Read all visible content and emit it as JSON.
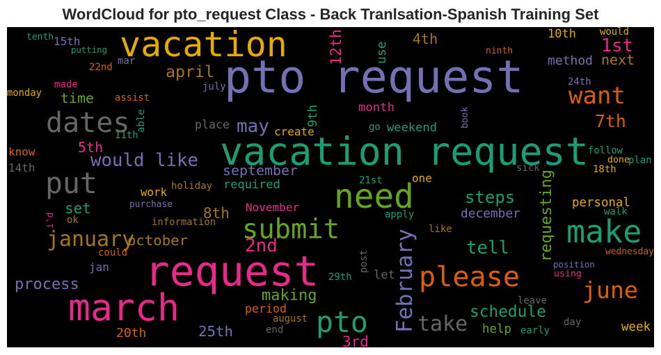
{
  "chart_data": {
    "type": "wordcloud",
    "title": "WordCloud for pto_request Class - Back Tranlsation-Spanish Training Set",
    "background": "#000000",
    "colormap": [
      "#1b9e77",
      "#d95f02",
      "#7570b3",
      "#e7298a",
      "#66a61e",
      "#e6ab02",
      "#a6761d",
      "#666666"
    ],
    "words": [
      {
        "text": "pto request",
        "color": "#7570b3",
        "vertical": false
      },
      {
        "text": "vacation request",
        "color": "#1b9e77",
        "vertical": false
      },
      {
        "text": "request",
        "color": "#e7298a",
        "vertical": false
      },
      {
        "text": "vacation",
        "color": "#e6ab02",
        "vertical": false
      },
      {
        "text": "march",
        "color": "#e7298a",
        "vertical": false
      },
      {
        "text": "need",
        "color": "#66a61e",
        "vertical": false
      },
      {
        "text": "put",
        "color": "#666666",
        "vertical": false
      },
      {
        "text": "submit",
        "color": "#66a61e",
        "vertical": false
      },
      {
        "text": "make",
        "color": "#1b9e77",
        "vertical": false
      },
      {
        "text": "please",
        "color": "#d95f02",
        "vertical": false
      },
      {
        "text": "pto",
        "color": "#1b9e77",
        "vertical": false
      },
      {
        "text": "june",
        "color": "#d95f02",
        "vertical": false
      },
      {
        "text": "dates",
        "color": "#666666",
        "vertical": false
      },
      {
        "text": "February",
        "color": "#7570b3",
        "vertical": true
      },
      {
        "text": "want",
        "color": "#d95f02",
        "vertical": false
      },
      {
        "text": "take",
        "color": "#666666",
        "vertical": false
      },
      {
        "text": "would like",
        "color": "#7570b3",
        "vertical": false
      },
      {
        "text": "january",
        "color": "#a6761d",
        "vertical": false
      },
      {
        "text": "tell",
        "color": "#1b9e77",
        "vertical": false
      },
      {
        "text": "schedule",
        "color": "#1b9e77",
        "vertical": false
      },
      {
        "text": "requesting",
        "color": "#66a61e",
        "vertical": true
      },
      {
        "text": "april",
        "color": "#a6761d",
        "vertical": false
      },
      {
        "text": "1st",
        "color": "#e7298a",
        "vertical": false
      },
      {
        "text": "12th",
        "color": "#e7298a",
        "vertical": true
      },
      {
        "text": "may",
        "color": "#7570b3",
        "vertical": false
      },
      {
        "text": "7th",
        "color": "#d95f02",
        "vertical": false
      },
      {
        "text": "process",
        "color": "#7570b3",
        "vertical": false
      },
      {
        "text": "making",
        "color": "#66a61e",
        "vertical": false
      },
      {
        "text": "october",
        "color": "#a6761d",
        "vertical": false
      },
      {
        "text": "steps",
        "color": "#1b9e77",
        "vertical": false
      },
      {
        "text": "2nd",
        "color": "#e7298a",
        "vertical": false
      },
      {
        "text": "time",
        "color": "#66a61e",
        "vertical": false
      },
      {
        "text": "4th",
        "color": "#a6761d",
        "vertical": false
      },
      {
        "text": "next",
        "color": "#a6761d",
        "vertical": false
      },
      {
        "text": "25th",
        "color": "#7570b3",
        "vertical": false
      },
      {
        "text": "5th",
        "color": "#e7298a",
        "vertical": false
      },
      {
        "text": "8th",
        "color": "#a6761d",
        "vertical": false
      },
      {
        "text": "set",
        "color": "#1b9e77",
        "vertical": false
      },
      {
        "text": "3rd",
        "color": "#e7298a",
        "vertical": false
      },
      {
        "text": "week",
        "color": "#e6ab02",
        "vertical": false
      },
      {
        "text": "september",
        "color": "#7570b3",
        "vertical": false
      },
      {
        "text": "method",
        "color": "#7570b3",
        "vertical": false
      },
      {
        "text": "personal",
        "color": "#e6ab02",
        "vertical": false
      },
      {
        "text": "december",
        "color": "#7570b3",
        "vertical": false
      },
      {
        "text": "20th",
        "color": "#d95f02",
        "vertical": false
      },
      {
        "text": "help",
        "color": "#66a61e",
        "vertical": false
      },
      {
        "text": "month",
        "color": "#e7298a",
        "vertical": false
      },
      {
        "text": "place",
        "color": "#666666",
        "vertical": false
      },
      {
        "text": "weekend",
        "color": "#1b9e77",
        "vertical": false
      },
      {
        "text": "create",
        "color": "#e6ab02",
        "vertical": false
      },
      {
        "text": "required",
        "color": "#1b9e77",
        "vertical": false
      },
      {
        "text": "work",
        "color": "#e6ab02",
        "vertical": false
      },
      {
        "text": "November",
        "color": "#e7298a",
        "vertical": false
      },
      {
        "text": "one",
        "color": "#e6ab02",
        "vertical": false
      },
      {
        "text": "period",
        "color": "#d95f02",
        "vertical": false
      },
      {
        "text": "10th",
        "color": "#e6ab02",
        "vertical": false
      },
      {
        "text": "15th",
        "color": "#7570b3",
        "vertical": false
      },
      {
        "text": "jan",
        "color": "#7570b3",
        "vertical": false
      },
      {
        "text": "know",
        "color": "#d95f02",
        "vertical": false
      },
      {
        "text": "14th",
        "color": "#666666",
        "vertical": false
      },
      {
        "text": "let",
        "color": "#666666",
        "vertical": false
      },
      {
        "text": "9th",
        "color": "#1b9e77",
        "vertical": true
      },
      {
        "text": "use",
        "color": "#1b9e77",
        "vertical": true
      },
      {
        "text": "putting",
        "color": "#1b9e77",
        "vertical": false
      },
      {
        "text": "tenth",
        "color": "#1b9e77",
        "vertical": false
      },
      {
        "text": "mar",
        "color": "#7570b3",
        "vertical": false
      },
      {
        "text": "22nd",
        "color": "#d95f02",
        "vertical": false
      },
      {
        "text": "made",
        "color": "#e7298a",
        "vertical": false
      },
      {
        "text": "monday",
        "color": "#e6ab02",
        "vertical": false
      },
      {
        "text": "assist",
        "color": "#d95f02",
        "vertical": false
      },
      {
        "text": "july",
        "color": "#7570b3",
        "vertical": false
      },
      {
        "text": "able",
        "color": "#1b9e77",
        "vertical": true
      },
      {
        "text": "11th",
        "color": "#1b9e77",
        "vertical": false
      },
      {
        "text": "would",
        "color": "#e6ab02",
        "vertical": false
      },
      {
        "text": "ninth",
        "color": "#d95f02",
        "vertical": false
      },
      {
        "text": "24th",
        "color": "#7570b3",
        "vertical": false
      },
      {
        "text": "book",
        "color": "#7570b3",
        "vertical": true
      },
      {
        "text": "go",
        "color": "#1b9e77",
        "vertical": false
      },
      {
        "text": "follow",
        "color": "#1b9e77",
        "vertical": false
      },
      {
        "text": "done",
        "color": "#e6ab02",
        "vertical": false
      },
      {
        "text": "plan",
        "color": "#1b9e77",
        "vertical": false
      },
      {
        "text": "sick",
        "color": "#666666",
        "vertical": false
      },
      {
        "text": "18th",
        "color": "#e6ab02",
        "vertical": false
      },
      {
        "text": "21st",
        "color": "#1b9e77",
        "vertical": false
      },
      {
        "text": "holiday",
        "color": "#a6761d",
        "vertical": false
      },
      {
        "text": "purchase",
        "color": "#7570b3",
        "vertical": false
      },
      {
        "text": "i'd",
        "color": "#e7298a",
        "vertical": true
      },
      {
        "text": "ok",
        "color": "#a6761d",
        "vertical": false
      },
      {
        "text": "information",
        "color": "#a6761d",
        "vertical": false
      },
      {
        "text": "apply",
        "color": "#1b9e77",
        "vertical": false
      },
      {
        "text": "walk",
        "color": "#1b9e77",
        "vertical": false
      },
      {
        "text": "like",
        "color": "#a6761d",
        "vertical": false
      },
      {
        "text": "could",
        "color": "#d95f02",
        "vertical": false
      },
      {
        "text": "post",
        "color": "#666666",
        "vertical": true
      },
      {
        "text": "wednesday",
        "color": "#d95f02",
        "vertical": false
      },
      {
        "text": "position",
        "color": "#7570b3",
        "vertical": false
      },
      {
        "text": "using",
        "color": "#e7298a",
        "vertical": false
      },
      {
        "text": "29th",
        "color": "#1b9e77",
        "vertical": false
      },
      {
        "text": "leave",
        "color": "#666666",
        "vertical": false
      },
      {
        "text": "day",
        "color": "#666666",
        "vertical": false
      },
      {
        "text": "august",
        "color": "#a6761d",
        "vertical": false
      },
      {
        "text": "end",
        "color": "#666666",
        "vertical": false
      },
      {
        "text": "early",
        "color": "#1b9e77",
        "vertical": false
      }
    ]
  }
}
